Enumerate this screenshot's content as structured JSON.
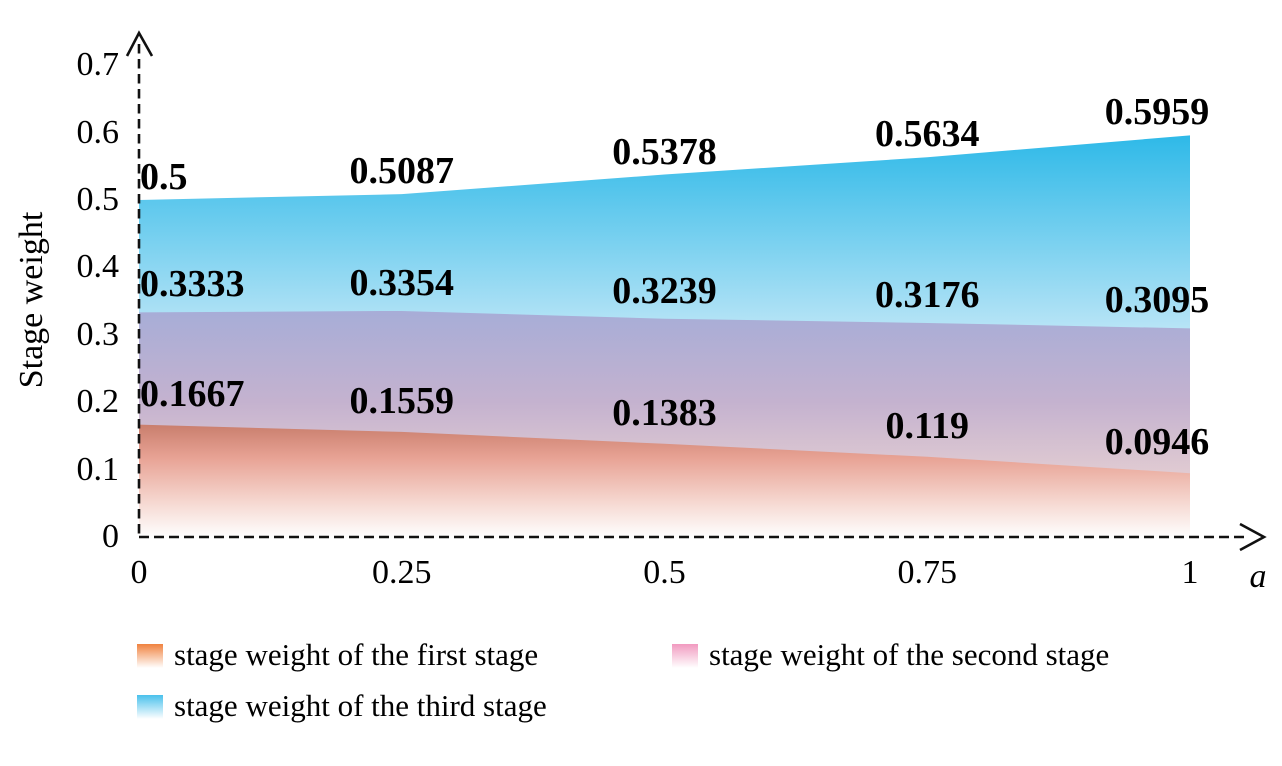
{
  "chart_data": {
    "type": "area",
    "stacked": false,
    "title": "",
    "xlabel": "a",
    "ylabel": "Stage weight",
    "x": [
      0,
      0.25,
      0.5,
      0.75,
      1
    ],
    "x_tick_labels": [
      "0",
      "0.25",
      "0.5",
      "0.75",
      "1"
    ],
    "y_ticks": [
      0,
      0.1,
      0.2,
      0.3,
      0.4,
      0.5,
      0.6,
      0.7
    ],
    "y_tick_labels": [
      "0",
      "0.1",
      "0.2",
      "0.3",
      "0.4",
      "0.5",
      "0.6",
      "0.7"
    ],
    "xlim": [
      0,
      1
    ],
    "ylim": [
      0,
      0.74
    ],
    "grid": false,
    "legend_position": "bottom, two columns",
    "axis_style": "dashed black axes with open arrowheads",
    "series": [
      {
        "name": "stage weight of the first stage",
        "values": [
          0.1667,
          0.1559,
          0.1383,
          0.119,
          0.0946
        ],
        "point_labels": [
          "0.1667",
          "0.1559",
          "0.1383",
          "0.119",
          "0.0946"
        ],
        "legend_color": "#f0823f",
        "area_gradient": {
          "offsets": [
            0,
            0.3,
            0.7,
            1
          ],
          "colors": [
            "#c97e6d",
            "#e8a395",
            "#f6d9d2",
            "#fefefe"
          ]
        }
      },
      {
        "name": "stage weight of the second stage",
        "values": [
          0.3333,
          0.3354,
          0.3239,
          0.3176,
          0.3095
        ],
        "point_labels": [
          "0.3333",
          "0.3354",
          "0.3239",
          "0.3176",
          "0.3095"
        ],
        "legend_color": "#f19ac0",
        "area_gradient": {
          "offsets": [
            0,
            0.4,
            0.75,
            1
          ],
          "colors": [
            "#a7add7",
            "#c4b2cf",
            "#e3cdd2",
            "#f5e7e3"
          ]
        }
      },
      {
        "name": "stage weight of the third stage",
        "values": [
          0.5,
          0.5087,
          0.5378,
          0.5634,
          0.5959
        ],
        "point_labels": [
          "0.5",
          "0.5087",
          "0.5378",
          "0.5634",
          "0.5959"
        ],
        "legend_color": "#4ac1ec",
        "area_gradient": {
          "offsets": [
            0,
            0.48,
            1
          ],
          "colors": [
            "#2eb9e8",
            "#b7e4f6",
            "#ffffff"
          ]
        }
      }
    ]
  }
}
